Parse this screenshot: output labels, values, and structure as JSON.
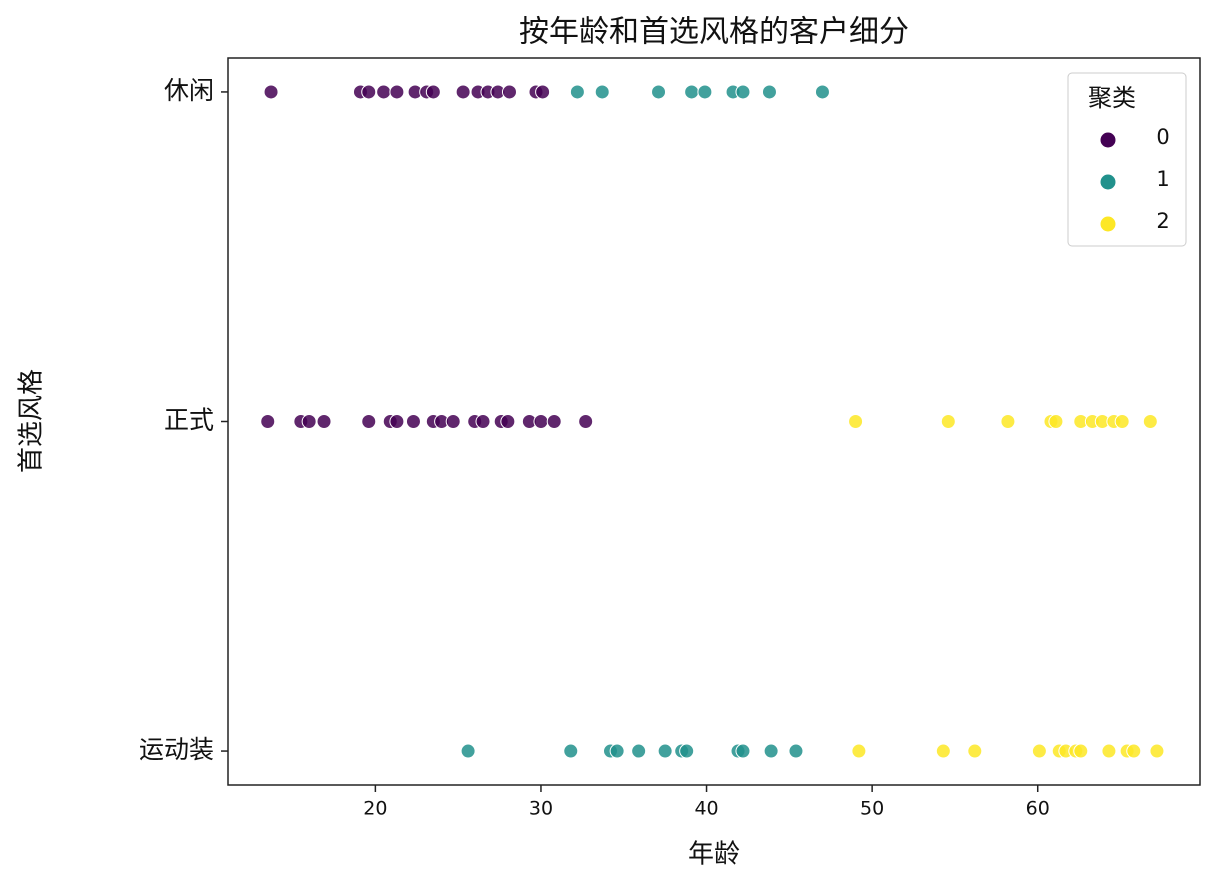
{
  "chart_data": {
    "type": "scatter",
    "title": "按年龄和首选风格的客户细分",
    "x_label": "年龄",
    "y_label": "首选风格",
    "xlim": [
      11.1,
      69.8
    ],
    "xticks": [
      20,
      30,
      40,
      50,
      60
    ],
    "y_categories": [
      "休闲",
      "正式",
      "运动装"
    ],
    "legend_title": "聚类",
    "legend_position": "upper right",
    "series": [
      {
        "name": "0",
        "color": "#440154",
        "x": [
          13.7,
          19.1,
          19.6,
          20.5,
          21.3,
          22.4,
          23.1,
          23.5,
          25.3,
          26.2,
          26.8,
          27.4,
          28.1,
          29.7,
          30.1,
          13.5,
          15.5,
          16.0,
          16.9,
          19.6,
          20.9,
          21.3,
          22.3,
          23.5,
          24.0,
          24.7,
          26.0,
          26.5,
          27.6,
          28.0,
          29.3,
          30.0,
          30.8,
          32.7
        ],
        "y": [
          "休闲",
          "休闲",
          "休闲",
          "休闲",
          "休闲",
          "休闲",
          "休闲",
          "休闲",
          "休闲",
          "休闲",
          "休闲",
          "休闲",
          "休闲",
          "休闲",
          "休闲",
          "正式",
          "正式",
          "正式",
          "正式",
          "正式",
          "正式",
          "正式",
          "正式",
          "正式",
          "正式",
          "正式",
          "正式",
          "正式",
          "正式",
          "正式",
          "正式",
          "正式",
          "正式",
          "正式"
        ]
      },
      {
        "name": "1",
        "color": "#21918c",
        "x": [
          32.2,
          33.7,
          37.1,
          39.1,
          39.9,
          41.6,
          42.2,
          43.8,
          47.0,
          25.6,
          31.8,
          34.2,
          34.6,
          35.9,
          37.5,
          38.5,
          38.8,
          41.9,
          42.2,
          43.9,
          45.4
        ],
        "y": [
          "休闲",
          "休闲",
          "休闲",
          "休闲",
          "休闲",
          "休闲",
          "休闲",
          "休闲",
          "休闲",
          "运动装",
          "运动装",
          "运动装",
          "运动装",
          "运动装",
          "运动装",
          "运动装",
          "运动装",
          "运动装",
          "运动装",
          "运动装",
          "运动装"
        ]
      },
      {
        "name": "2",
        "color": "#fde725",
        "x": [
          49.0,
          54.6,
          58.2,
          60.8,
          61.1,
          62.6,
          63.3,
          63.9,
          64.6,
          65.1,
          66.8,
          49.2,
          54.3,
          56.2,
          60.1,
          61.3,
          61.7,
          62.3,
          62.6,
          64.3,
          65.4,
          65.8,
          67.2
        ],
        "y": [
          "正式",
          "正式",
          "正式",
          "正式",
          "正式",
          "正式",
          "正式",
          "正式",
          "正式",
          "正式",
          "正式",
          "运动装",
          "运动装",
          "运动装",
          "运动装",
          "运动装",
          "运动装",
          "运动装",
          "运动装",
          "运动装",
          "运动装",
          "运动装",
          "运动装"
        ]
      }
    ]
  }
}
